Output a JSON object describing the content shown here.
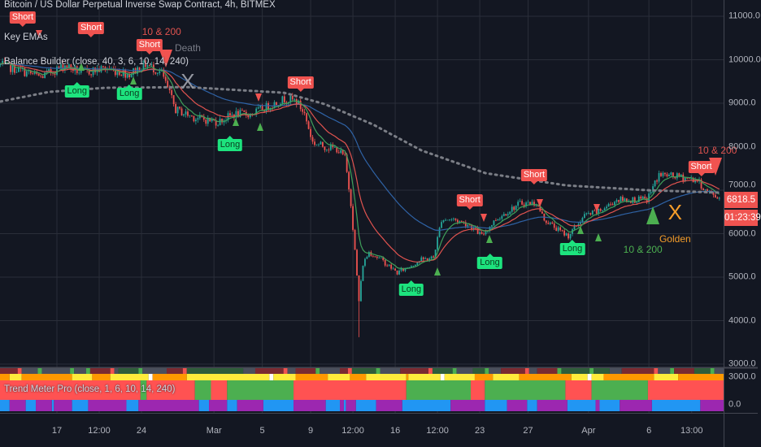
{
  "header": {
    "symbol_title": "Bitcoin / US Dollar Perpetual Inverse Swap Contract, 4h, BITMEX",
    "indicator_1": "Key EMAs",
    "indicator_2": "Balance Builder (close, 40, 3, 6, 10, 14, 240)",
    "indicator_3": "Trend Meter Pro (close, 1, 6, 10, 14, 240)"
  },
  "price_scale": {
    "ticks": [
      "11000.0",
      "10000.0",
      "9000.0",
      "8000.0",
      "7000.0",
      "6000.0",
      "5000.0",
      "4000.0",
      "3000.0"
    ],
    "last_price": "6818.5",
    "countdown": "01:23:39",
    "indicator_ticks": [
      "3000.0",
      "0.0"
    ]
  },
  "colors": {
    "background": "#131722",
    "grid": "#2a2e39",
    "up": "#26a69a",
    "down": "#ef5350",
    "ema_fast": "#3fa05a",
    "ema_mid": "#e0534f",
    "ema_slow": "#2f63a6",
    "ma_long": "#7b7e86",
    "last_price": "#ef5350"
  },
  "chart_data": {
    "type": "candlestick",
    "timeframe": "4h",
    "ylim": [
      3000,
      11000
    ],
    "grid": true,
    "x_ticks": [
      {
        "label": "17",
        "date": "02-17 00:00"
      },
      {
        "label": "12:00",
        "date": "02-20 12:00"
      },
      {
        "label": "24",
        "date": "02-24 00:00"
      },
      {
        "label": "Mar",
        "date": "03-01 00:00"
      },
      {
        "label": "5",
        "date": "03-05 00:00"
      },
      {
        "label": "9",
        "date": "03-09 00:00"
      },
      {
        "label": "12:00",
        "date": "03-12 12:00"
      },
      {
        "label": "16",
        "date": "03-16 00:00"
      },
      {
        "label": "12:00",
        "date": "03-19 12:00"
      },
      {
        "label": "23",
        "date": "03-23 00:00"
      },
      {
        "label": "27",
        "date": "03-27 00:00"
      },
      {
        "label": "Apr",
        "date": "04-01 00:00"
      },
      {
        "label": "6",
        "date": "04-06 00:00"
      },
      {
        "label": "13:00",
        "date": "04-09 13:00"
      }
    ],
    "close_path": [
      [
        "02-12 08:00",
        9880
      ],
      [
        "02-13 16:00",
        9780
      ],
      [
        "02-15 16:00",
        9600
      ],
      [
        "02-17 16:00",
        9880
      ],
      [
        "02-19 00:00",
        9700
      ],
      [
        "02-21 00:00",
        9800
      ],
      [
        "02-23 00:00",
        9670
      ],
      [
        "02-24 08:00",
        9900
      ],
      [
        "02-25 16:00",
        9700
      ],
      [
        "02-26 20:00",
        8850
      ],
      [
        "02-28 12:00",
        8660
      ],
      [
        "03-01 08:00",
        8570
      ],
      [
        "03-02 16:00",
        8750
      ],
      [
        "03-04 00:00",
        8750
      ],
      [
        "03-05 12:00",
        8930
      ],
      [
        "03-06 20:00",
        9100
      ],
      [
        "03-07 20:00",
        9050
      ],
      [
        "03-08 12:00",
        8750
      ],
      [
        "03-09 04:00",
        8100
      ],
      [
        "03-10 04:00",
        8000
      ],
      [
        "03-11 04:00",
        7950
      ],
      [
        "03-11 20:00",
        7750
      ],
      [
        "03-12 08:00",
        6700
      ],
      [
        "03-12 16:00",
        5600
      ],
      [
        "03-13 00:00",
        4450
      ],
      [
        "03-13 08:00",
        5300
      ],
      [
        "03-13 20:00",
        5580
      ],
      [
        "03-14 20:00",
        5400
      ],
      [
        "03-16 04:00",
        5100
      ],
      [
        "03-16 20:00",
        5200
      ],
      [
        "03-18 04:00",
        5400
      ],
      [
        "03-19 04:00",
        5450
      ],
      [
        "03-19 20:00",
        6330
      ],
      [
        "03-20 20:00",
        6330
      ],
      [
        "03-22 04:00",
        6200
      ],
      [
        "03-23 04:00",
        5950
      ],
      [
        "03-24 08:00",
        6330
      ],
      [
        "03-26 08:00",
        6700
      ],
      [
        "03-27 16:00",
        6700
      ],
      [
        "03-28 08:00",
        6330
      ],
      [
        "03-29 16:00",
        6050
      ],
      [
        "03-30 08:00",
        5950
      ],
      [
        "03-31 16:00",
        6420
      ],
      [
        "04-01 20:00",
        6500
      ],
      [
        "04-03 08:00",
        6780
      ],
      [
        "04-04 16:00",
        6780
      ],
      [
        "04-05 20:00",
        6780
      ],
      [
        "04-06 20:00",
        7360
      ],
      [
        "04-08 16:00",
        7300
      ],
      [
        "04-10 00:00",
        7230
      ],
      [
        "04-10 16:00",
        6990
      ],
      [
        "04-11 20:00",
        6818.5
      ]
    ],
    "extreme_low": {
      "date": "03-13 00:00",
      "price": 3620
    },
    "ma_long_path": [
      [
        "02-12 08:00",
        9040
      ],
      [
        "02-16 08:00",
        9260
      ],
      [
        "02-21 00:00",
        9355
      ],
      [
        "02-27 20:00",
        9370
      ],
      [
        "03-06 20:00",
        9240
      ],
      [
        "03-10 04:00",
        8980
      ],
      [
        "03-14 04:00",
        8510
      ],
      [
        "03-18 04:00",
        7915
      ],
      [
        "03-23 12:00",
        7390
      ],
      [
        "03-30 04:00",
        7110
      ],
      [
        "04-05 20:00",
        7000
      ],
      [
        "04-11 20:00",
        6944
      ]
    ],
    "signals": [
      {
        "type": "short",
        "label": "Short",
        "date": "02-14 04:00",
        "price": 10757
      },
      {
        "type": "short",
        "label": "Short",
        "date": "02-19 20:00",
        "price": 10514
      },
      {
        "type": "short",
        "label": "Short",
        "date": "02-24 16:00",
        "price": 10121
      },
      {
        "type": "short",
        "label": "Short",
        "date": "03-08 04:00",
        "price": 9262
      },
      {
        "type": "short",
        "label": "Short",
        "date": "03-22 04:00",
        "price": 6551
      },
      {
        "type": "short",
        "label": "Short",
        "date": "03-27 12:00",
        "price": 7131
      },
      {
        "type": "short",
        "label": "Short",
        "date": "04-10 08:00",
        "price": 7318
      },
      {
        "type": "long",
        "label": "Long",
        "date": "02-18 16:00",
        "price": 9486
      },
      {
        "type": "long",
        "label": "Long",
        "date": "02-23 00:00",
        "price": 9430
      },
      {
        "type": "long",
        "label": "Long",
        "date": "03-02 08:00",
        "price": 8252
      },
      {
        "type": "long",
        "label": "Long",
        "date": "03-17 08:00",
        "price": 4925
      },
      {
        "type": "long",
        "label": "Long",
        "date": "03-23 20:00",
        "price": 5542
      },
      {
        "type": "long",
        "label": "Long",
        "date": "03-30 16:00",
        "price": 5860
      }
    ],
    "sell_triangles": [
      {
        "date": "02-15 12:00",
        "price": 10589,
        "size": "small"
      },
      {
        "date": "02-26 00:00",
        "price": 10028,
        "size": "large"
      },
      {
        "date": "03-04 16:00",
        "price": 9131,
        "size": "small"
      },
      {
        "date": "03-23 08:00",
        "price": 6364,
        "size": "small"
      },
      {
        "date": "03-28 00:00",
        "price": 6701,
        "size": "small"
      },
      {
        "date": "04-01 16:00",
        "price": 6589,
        "size": "small"
      },
      {
        "date": "04-11 12:00",
        "price": 7542,
        "size": "large"
      }
    ],
    "buy_triangles": [
      {
        "date": "02-19 00:00",
        "price": 9841,
        "size": "small"
      },
      {
        "date": "02-23 08:00",
        "price": 9523,
        "size": "small"
      },
      {
        "date": "03-02 20:00",
        "price": 8570,
        "size": "small"
      },
      {
        "date": "03-04 20:00",
        "price": 8458,
        "size": "small"
      },
      {
        "date": "03-19 12:00",
        "price": 5131,
        "size": "small"
      },
      {
        "date": "03-23 20:00",
        "price": 5879,
        "size": "small"
      },
      {
        "date": "03-31 08:00",
        "price": 6084,
        "size": "small"
      },
      {
        "date": "04-01 20:00",
        "price": 5916,
        "size": "small"
      },
      {
        "date": "04-06 08:00",
        "price": 6420,
        "size": "large"
      }
    ],
    "annotations": [
      {
        "text": "10 & 200",
        "date": "02-25 16:00",
        "price": 10600,
        "color": "#e0534f"
      },
      {
        "text": "Death",
        "date": "02-27 20:00",
        "price": 10230,
        "color": "#787b86"
      },
      {
        "text": "X",
        "date": "02-27 20:00",
        "price": 9500,
        "color": "#9598a1",
        "big": true
      },
      {
        "text": "10 & 200",
        "date": "04-05 12:00",
        "price": 5600,
        "color": "#4caf50"
      },
      {
        "text": "X",
        "date": "04-08 04:00",
        "price": 6490,
        "color": "#f59d2a",
        "big": true
      },
      {
        "text": "Golden",
        "date": "04-08 04:00",
        "price": 5850,
        "color": "#f59d2a"
      },
      {
        "text": "10 & 200",
        "date": "04-11 16:00",
        "price": 7880,
        "color": "#e0534f"
      }
    ]
  },
  "trend_meter": {
    "rows": [
      {
        "palette": {
          "D": "#4a4f5c",
          "R": "#7a2a31",
          "G": "#2f5d3a",
          "L": "#4caf50",
          "S": "#f05350"
        },
        "runs": [
          [
            "R",
            9
          ],
          [
            "S",
            2
          ],
          [
            "D",
            8
          ],
          [
            "L",
            2
          ],
          [
            "D",
            14
          ],
          [
            "L",
            2
          ],
          [
            "D",
            6
          ],
          [
            "L",
            2
          ],
          [
            "R",
            10
          ],
          [
            "S",
            2
          ],
          [
            "D",
            2
          ],
          [
            "G",
            10
          ],
          [
            "L",
            2
          ],
          [
            "D",
            12
          ],
          [
            "R",
            8
          ],
          [
            "S",
            2
          ],
          [
            "G",
            28
          ],
          [
            "D",
            6
          ],
          [
            "R",
            14
          ],
          [
            "S",
            2
          ],
          [
            "D",
            4
          ],
          [
            "R",
            10
          ],
          [
            "L",
            2
          ],
          [
            "D",
            10
          ],
          [
            "R",
            4
          ],
          [
            "S",
            2
          ],
          [
            "G",
            12
          ],
          [
            "L",
            2
          ],
          [
            "D",
            10
          ],
          [
            "R",
            14
          ],
          [
            "S",
            2
          ],
          [
            "G",
            10
          ],
          [
            "L",
            2
          ],
          [
            "D",
            8
          ],
          [
            "G",
            6
          ],
          [
            "L",
            2
          ],
          [
            "D",
            6
          ],
          [
            "R",
            12
          ],
          [
            "S",
            2
          ],
          [
            "D",
            4
          ],
          [
            "R",
            10
          ],
          [
            "L",
            2
          ],
          [
            "G",
            14
          ],
          [
            "L",
            2
          ],
          [
            "G",
            8
          ],
          [
            "D",
            6
          ],
          [
            "R",
            16
          ],
          [
            "S",
            2
          ],
          [
            "D",
            6
          ],
          [
            "L",
            2
          ],
          [
            "R",
            10
          ],
          [
            "G",
            8
          ],
          [
            "L",
            2
          ],
          [
            "D",
            10
          ]
        ]
      },
      {
        "palette": {
          "o": "#ff9800",
          "y": "#ffeb3b",
          "w": "#ffffff"
        },
        "runs": [
          [
            "o",
            5
          ],
          [
            "y",
            6
          ],
          [
            "o",
            25
          ],
          [
            "y",
            10
          ],
          [
            "o",
            9
          ],
          [
            "y",
            19
          ],
          [
            "w",
            2
          ],
          [
            "o",
            17
          ],
          [
            "y",
            41
          ],
          [
            "w",
            2
          ],
          [
            "y",
            11
          ],
          [
            "o",
            16
          ],
          [
            "y",
            11
          ],
          [
            "o",
            8
          ],
          [
            "y",
            20
          ],
          [
            "o",
            1
          ],
          [
            "y",
            16
          ],
          [
            "w",
            2
          ],
          [
            "y",
            15
          ],
          [
            "o",
            9
          ],
          [
            "y",
            13
          ],
          [
            "o",
            26
          ],
          [
            "y",
            8
          ],
          [
            "w",
            2
          ],
          [
            "y",
            6
          ],
          [
            "o",
            25
          ],
          [
            "y",
            12
          ],
          [
            "o",
            23
          ]
        ]
      },
      {
        "palette": {
          "r": "#ff5252",
          "g": "#4caf50"
        },
        "runs": [
          [
            "r",
            70
          ],
          [
            "g",
            3
          ],
          [
            "r",
            24
          ],
          [
            "g",
            8
          ],
          [
            "r",
            8
          ],
          [
            "g",
            33
          ],
          [
            "r",
            56
          ],
          [
            "g",
            32
          ],
          [
            "r",
            7
          ],
          [
            "g",
            40
          ],
          [
            "r",
            13
          ],
          [
            "g",
            28
          ],
          [
            "r",
            38
          ]
        ]
      },
      {
        "palette": {
          "b": "#2196f3",
          "p": "#9c27b0"
        },
        "runs": [
          [
            "b",
            5
          ],
          [
            "p",
            8
          ],
          [
            "b",
            5
          ],
          [
            "p",
            8
          ],
          [
            "b",
            1
          ],
          [
            "p",
            9
          ],
          [
            "b",
            8
          ],
          [
            "p",
            19
          ],
          [
            "b",
            6
          ],
          [
            "p",
            30
          ],
          [
            "b",
            5
          ],
          [
            "p",
            9
          ],
          [
            "b",
            5
          ],
          [
            "p",
            13
          ],
          [
            "b",
            15
          ],
          [
            "p",
            16
          ],
          [
            "b",
            7
          ],
          [
            "p",
            2
          ],
          [
            "b",
            1
          ],
          [
            "p",
            5
          ],
          [
            "b",
            10
          ],
          [
            "p",
            13
          ],
          [
            "b",
            24
          ],
          [
            "p",
            17
          ],
          [
            "b",
            11
          ],
          [
            "p",
            10
          ],
          [
            "b",
            5
          ],
          [
            "p",
            15
          ],
          [
            "b",
            14
          ],
          [
            "p",
            2
          ],
          [
            "b",
            10
          ],
          [
            "p",
            16
          ],
          [
            "b",
            24
          ],
          [
            "p",
            12
          ]
        ]
      }
    ]
  }
}
